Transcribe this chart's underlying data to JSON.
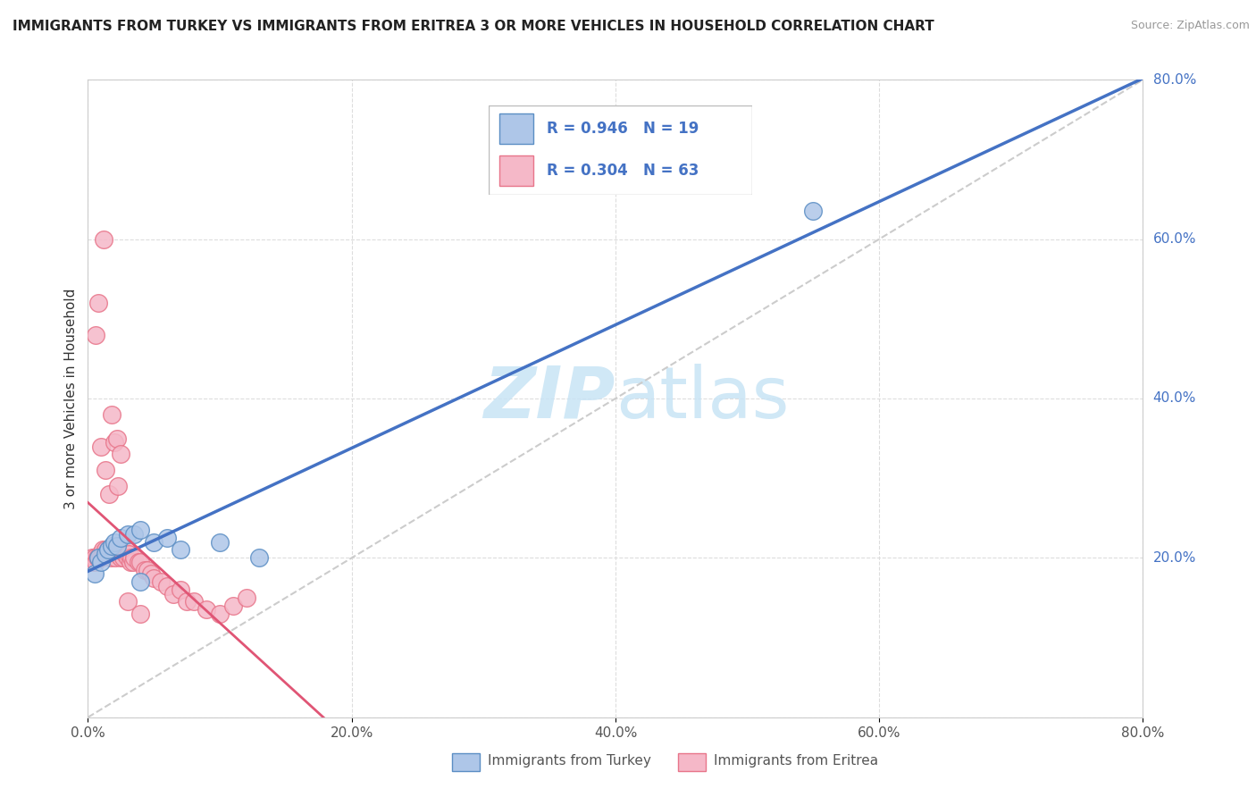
{
  "title": "IMMIGRANTS FROM TURKEY VS IMMIGRANTS FROM ERITREA 3 OR MORE VEHICLES IN HOUSEHOLD CORRELATION CHART",
  "source": "Source: ZipAtlas.com",
  "ylabel": "3 or more Vehicles in Household",
  "xlim": [
    0.0,
    0.8
  ],
  "ylim": [
    0.0,
    0.8
  ],
  "xticks": [
    0.0,
    0.2,
    0.4,
    0.6,
    0.8
  ],
  "yticks": [
    0.2,
    0.4,
    0.6,
    0.8
  ],
  "xticklabels": [
    "0.0%",
    "20.0%",
    "40.0%",
    "60.0%",
    "80.0%"
  ],
  "yticklabels": [
    "20.0%",
    "40.0%",
    "60.0%",
    "80.0%"
  ],
  "turkey_color": "#aec6e8",
  "eritrea_color": "#f5b8c8",
  "turkey_edge_color": "#5b8ec4",
  "eritrea_edge_color": "#e8758a",
  "turkey_line_color": "#4472c4",
  "eritrea_line_color": "#e05575",
  "diagonal_color": "#cccccc",
  "R_turkey": 0.946,
  "N_turkey": 19,
  "R_eritrea": 0.304,
  "N_eritrea": 63,
  "legend_label_color": "#4472c4",
  "watermark_color": "#c8e4f5",
  "turkey_x": [
    0.005,
    0.008,
    0.01,
    0.013,
    0.015,
    0.018,
    0.02,
    0.022,
    0.025,
    0.03,
    0.035,
    0.04,
    0.05,
    0.06,
    0.07,
    0.1,
    0.13,
    0.55,
    0.04
  ],
  "turkey_y": [
    0.18,
    0.2,
    0.195,
    0.205,
    0.21,
    0.215,
    0.22,
    0.215,
    0.225,
    0.23,
    0.23,
    0.235,
    0.22,
    0.225,
    0.21,
    0.22,
    0.2,
    0.635,
    0.17
  ],
  "eritrea_x": [
    0.002,
    0.003,
    0.004,
    0.005,
    0.006,
    0.007,
    0.008,
    0.009,
    0.01,
    0.011,
    0.012,
    0.013,
    0.014,
    0.015,
    0.016,
    0.017,
    0.018,
    0.019,
    0.02,
    0.021,
    0.022,
    0.023,
    0.024,
    0.025,
    0.026,
    0.027,
    0.028,
    0.029,
    0.03,
    0.031,
    0.032,
    0.033,
    0.034,
    0.035,
    0.038,
    0.04,
    0.043,
    0.045,
    0.048,
    0.05,
    0.055,
    0.06,
    0.065,
    0.07,
    0.075,
    0.08,
    0.09,
    0.1,
    0.11,
    0.12,
    0.01,
    0.013,
    0.016,
    0.02,
    0.023,
    0.006,
    0.008,
    0.012,
    0.018,
    0.022,
    0.025,
    0.03,
    0.04
  ],
  "eritrea_y": [
    0.195,
    0.2,
    0.195,
    0.2,
    0.195,
    0.2,
    0.2,
    0.205,
    0.2,
    0.21,
    0.205,
    0.21,
    0.205,
    0.21,
    0.205,
    0.2,
    0.21,
    0.21,
    0.205,
    0.2,
    0.21,
    0.21,
    0.205,
    0.2,
    0.21,
    0.2,
    0.205,
    0.21,
    0.2,
    0.205,
    0.195,
    0.2,
    0.195,
    0.2,
    0.195,
    0.195,
    0.185,
    0.185,
    0.18,
    0.175,
    0.17,
    0.165,
    0.155,
    0.16,
    0.145,
    0.145,
    0.135,
    0.13,
    0.14,
    0.15,
    0.34,
    0.31,
    0.28,
    0.345,
    0.29,
    0.48,
    0.52,
    0.6,
    0.38,
    0.35,
    0.33,
    0.145,
    0.13
  ],
  "bottom_legend_turkey": "Immigrants from Turkey",
  "bottom_legend_eritrea": "Immigrants from Eritrea"
}
